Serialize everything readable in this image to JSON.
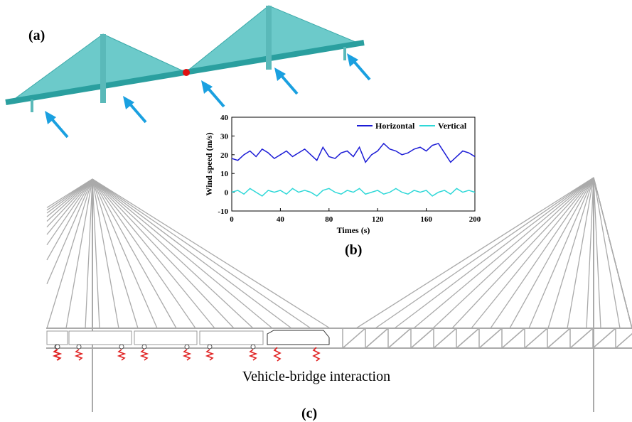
{
  "panel_a": {
    "label": "(a)"
  },
  "panel_b": {
    "label": "(b)"
  },
  "panel_c": {
    "label": "(c)",
    "caption": "Vehicle-bridge interaction"
  },
  "chart_data": {
    "type": "line",
    "x_label": "Times (s)",
    "y_label": "Wind speed (m/s)",
    "x": [
      0,
      5,
      10,
      15,
      20,
      25,
      30,
      35,
      40,
      45,
      50,
      55,
      60,
      65,
      70,
      75,
      80,
      85,
      90,
      95,
      100,
      105,
      110,
      115,
      120,
      125,
      130,
      135,
      140,
      145,
      150,
      155,
      160,
      165,
      170,
      175,
      180,
      185,
      190,
      195,
      200
    ],
    "series": [
      {
        "name": "Horizontal",
        "color": "#1c1cd6",
        "values": [
          18,
          17,
          20,
          22,
          19,
          23,
          21,
          18,
          20,
          22,
          19,
          21,
          23,
          20,
          17,
          24,
          19,
          18,
          21,
          22,
          19,
          24,
          16,
          20,
          22,
          26,
          23,
          22,
          20,
          21,
          23,
          24,
          22,
          25,
          26,
          21,
          16,
          19,
          22,
          21,
          19
        ]
      },
      {
        "name": "Vertical",
        "color": "#2fd8d8",
        "values": [
          0,
          1,
          -1,
          2,
          0,
          -2,
          1,
          0,
          1,
          -1,
          2,
          0,
          1,
          0,
          -2,
          1,
          2,
          0,
          -1,
          1,
          0,
          2,
          -1,
          0,
          1,
          -1,
          0,
          2,
          0,
          -1,
          1,
          0,
          1,
          -2,
          0,
          1,
          -1,
          2,
          0,
          1,
          0
        ]
      }
    ],
    "xlim": [
      0,
      200
    ],
    "xticks": [
      0,
      40,
      80,
      120,
      160,
      200
    ],
    "ylim": [
      -10,
      40
    ],
    "yticks": [
      -10,
      0,
      10,
      20,
      30,
      40
    ],
    "legend": "top-right"
  }
}
